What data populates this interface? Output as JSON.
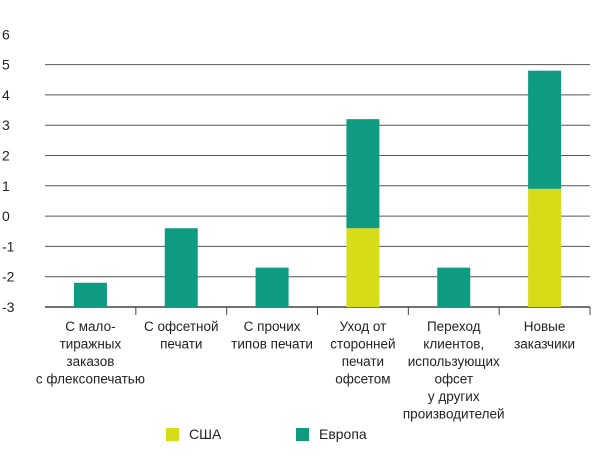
{
  "chart_data": {
    "type": "bar",
    "stacked": true,
    "title": "",
    "xlabel": "",
    "ylabel": "",
    "y_tick_labels": [
      "6",
      "5",
      "4",
      "3",
      "2",
      "1",
      "0",
      "-1",
      "-2",
      "-3"
    ],
    "categories": [
      [
        "С мало-",
        "тиражных",
        "заказов",
        "с флексопечатью"
      ],
      [
        "С офсетной",
        "печати"
      ],
      [
        "С прочих",
        "типов печати"
      ],
      [
        "Уход от",
        "сторонней",
        "печати",
        "офсетом"
      ],
      [
        "Переход",
        "клиентов,",
        "использующих",
        "офсет",
        "у других",
        "производителей"
      ],
      [
        "Новые",
        "заказчики"
      ]
    ],
    "series": [
      {
        "name": "США",
        "color": "#d6dc18",
        "values": [
          0,
          0,
          0,
          2.6,
          0,
          3.9
        ]
      },
      {
        "name": "Европа",
        "color": "#0f9b82",
        "values": [
          0.8,
          2.6,
          1.3,
          3.6,
          1.3,
          3.9
        ]
      }
    ],
    "legend_position": "bottom",
    "grid": "horizontal",
    "grid_color": "#555555"
  }
}
